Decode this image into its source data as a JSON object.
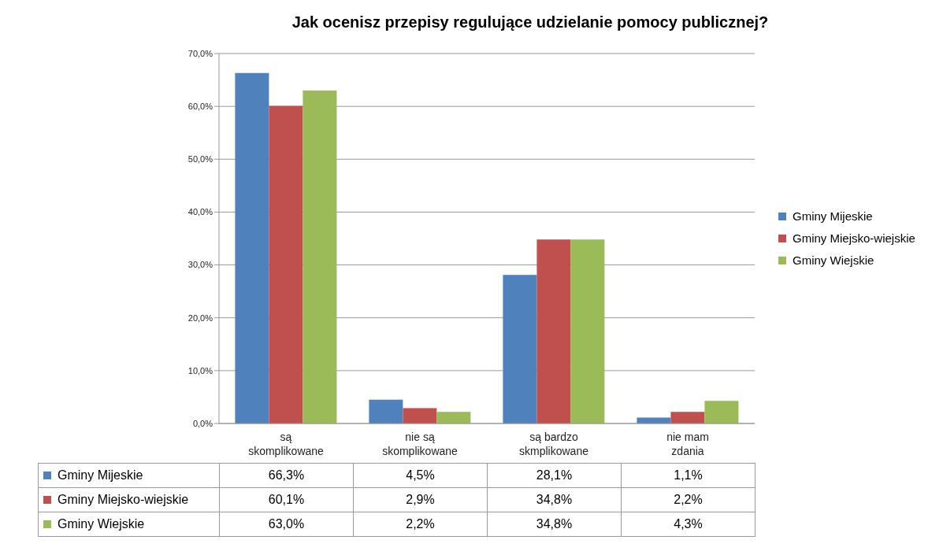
{
  "chart_data": {
    "type": "bar",
    "title": "Jak ocenisz przepisy regulujące udzielanie pomocy publicznej?",
    "categories": [
      "są skomplikowane",
      "nie są skomplikowane",
      "są bardzo skmplikowane",
      "nie mam zdania"
    ],
    "series": [
      {
        "name": "Gminy Mijeskie",
        "color": "#4f81bd",
        "values": [
          66.3,
          4.5,
          28.1,
          1.1
        ],
        "value_labels": [
          "66,3%",
          "4,5%",
          "28,1%",
          "1,1%"
        ]
      },
      {
        "name": "Gminy Miejsko-wiejskie",
        "color": "#c0504d",
        "values": [
          60.1,
          2.9,
          34.8,
          2.2
        ],
        "value_labels": [
          "60,1%",
          "2,9%",
          "34,8%",
          "2,2%"
        ]
      },
      {
        "name": "Gminy Wiejskie",
        "color": "#9bbb59",
        "values": [
          63.0,
          2.2,
          34.8,
          4.3
        ],
        "value_labels": [
          "63,0%",
          "2,2%",
          "34,8%",
          "4,3%"
        ]
      }
    ],
    "ylim": [
      0,
      70
    ],
    "yticks": [
      {
        "value": 0,
        "label": "0,0%"
      },
      {
        "value": 10,
        "label": "10,0%"
      },
      {
        "value": 20,
        "label": "20,0%"
      },
      {
        "value": 30,
        "label": "30,0%"
      },
      {
        "value": 40,
        "label": "40,0%"
      },
      {
        "value": 50,
        "label": "50,0%"
      },
      {
        "value": 60,
        "label": "60,0%"
      },
      {
        "value": 70,
        "label": "70,0%"
      }
    ],
    "grid": "y",
    "legend": "right"
  }
}
